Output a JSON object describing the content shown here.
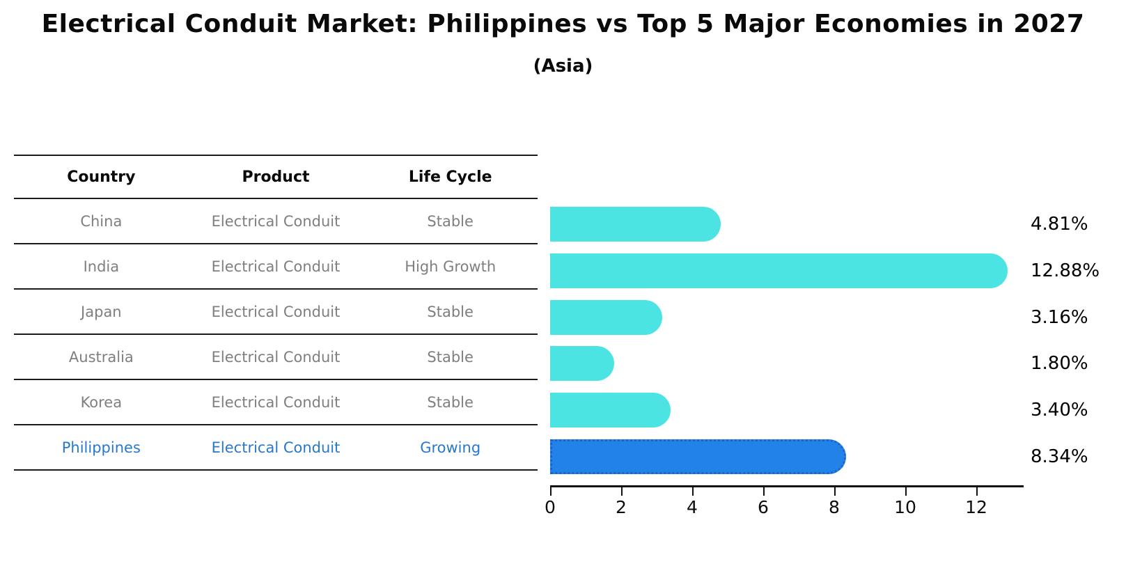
{
  "title": "Electrical Conduit Market: Philippines vs Top 5 Major Economies in 2027",
  "subtitle": "(Asia)",
  "table": {
    "headers": [
      "Country",
      "Product",
      "Life Cycle"
    ],
    "rows": [
      {
        "country": "China",
        "product": "Electrical Conduit",
        "life_cycle": "Stable",
        "highlight": false
      },
      {
        "country": "India",
        "product": "Electrical Conduit",
        "life_cycle": "High Growth",
        "highlight": false
      },
      {
        "country": "Japan",
        "product": "Electrical Conduit",
        "life_cycle": "Stable",
        "highlight": false
      },
      {
        "country": "Australia",
        "product": "Electrical Conduit",
        "life_cycle": "Stable",
        "highlight": false
      },
      {
        "country": "Korea",
        "product": "Electrical Conduit",
        "life_cycle": "Stable",
        "highlight": false
      },
      {
        "country": "Philippines",
        "product": "Electrical Conduit",
        "life_cycle": "Growing",
        "highlight": true
      }
    ]
  },
  "chart_data": {
    "type": "bar",
    "orientation": "horizontal",
    "title": "Electrical Conduit Market: Philippines vs Top 5 Major Economies in 2027",
    "subtitle": "(Asia)",
    "categories": [
      "China",
      "India",
      "Japan",
      "Australia",
      "Korea",
      "Philippines"
    ],
    "values": [
      4.81,
      12.88,
      3.16,
      1.8,
      3.4,
      8.34
    ],
    "value_labels": [
      "4.81%",
      "12.88%",
      "3.16%",
      "1.80%",
      "3.40%",
      "8.34%"
    ],
    "x_ticks": [
      "0",
      "2",
      "4",
      "6",
      "8",
      "10",
      "12"
    ],
    "x_tick_values": [
      0,
      2,
      4,
      6,
      8,
      10,
      12
    ],
    "xlim": [
      0,
      13.3
    ],
    "grid": false,
    "legend": false,
    "highlight_index": 5,
    "bar_color": "#4be4e2",
    "highlight_bar_color": "#2282e8",
    "highlight_border_color": "#1766ce",
    "highlight_text_color": "#2878cd",
    "row_text_color": "#7f7f7f"
  }
}
